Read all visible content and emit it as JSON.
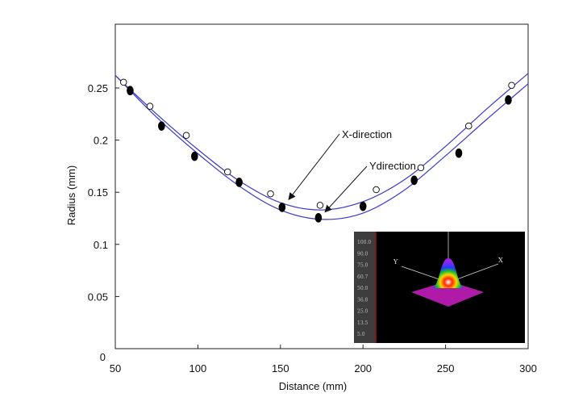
{
  "chart_data": {
    "type": "scatter",
    "xlabel": "Distance (mm)",
    "ylabel": "Radius (mm)",
    "xlim": [
      50,
      300
    ],
    "ylim": [
      0,
      0.3
    ],
    "xticks": [
      50,
      100,
      150,
      200,
      250,
      300
    ],
    "yticks": [
      0,
      0.05,
      0.1,
      0.15,
      0.2,
      0.25
    ],
    "ytick_labels": [
      "0",
      "0.05",
      "0.1",
      "0.15",
      "0.2",
      "0.25"
    ],
    "grid": false,
    "series": [
      {
        "name": "X-direction",
        "marker": "open-circle",
        "x": [
          55,
          71,
          93,
          118,
          144,
          174,
          208,
          235,
          264,
          290
        ],
        "y": [
          0.2555,
          0.2325,
          0.2045,
          0.1695,
          0.1485,
          0.1375,
          0.1525,
          0.1735,
          0.2135,
          0.2525
        ]
      },
      {
        "name": "Ydirection",
        "marker": "filled-ellipse",
        "x": [
          59,
          78,
          98,
          125,
          151,
          173,
          200,
          231,
          258,
          288
        ],
        "y": [
          0.2475,
          0.2135,
          0.1845,
          0.1595,
          0.1355,
          0.1255,
          0.1365,
          0.1615,
          0.1875,
          0.2385
        ]
      }
    ],
    "fits": [
      {
        "name": "X-direction",
        "color": "#3a3acc",
        "x": [
          50,
          75,
          100,
          125,
          150,
          175,
          200,
          225,
          250,
          275,
          300
        ],
        "y": [
          0.262,
          0.225,
          0.191,
          0.161,
          0.14,
          0.133,
          0.141,
          0.162,
          0.194,
          0.23,
          0.264
        ]
      },
      {
        "name": "Ydirection",
        "color": "#3a3acc",
        "x": [
          50,
          75,
          100,
          125,
          150,
          175,
          200,
          225,
          250,
          275,
          300
        ],
        "y": [
          0.262,
          0.222,
          0.187,
          0.156,
          0.133,
          0.124,
          0.13,
          0.152,
          0.185,
          0.22,
          0.254
        ]
      }
    ],
    "annotations": [
      {
        "text": "X-direction",
        "points_to": [
          155,
          0.143
        ]
      },
      {
        "text": "Ydirection",
        "points_to": [
          177,
          0.131
        ]
      }
    ],
    "inset": {
      "scale_labels": [
        "100.0",
        "90.0",
        "75.0",
        "60.7",
        "50.0",
        "36.8",
        "25.0",
        "13.5",
        "5.0"
      ],
      "axis_labels": [
        "Y",
        "X"
      ]
    }
  },
  "colors": {
    "fit_curve": "#3a3acc",
    "marker": "#000000",
    "inset_bg": "#000000",
    "inset_bar": "#3d3d3d"
  }
}
